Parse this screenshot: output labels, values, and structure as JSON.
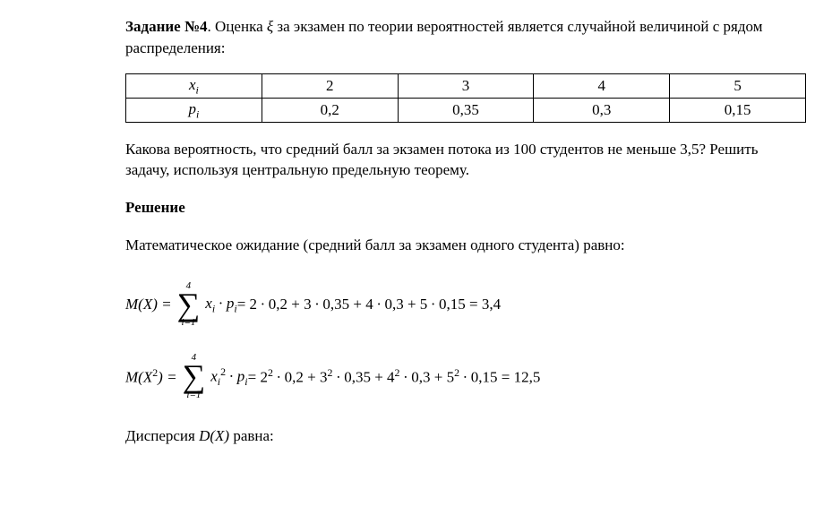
{
  "task": {
    "label": "Задание №4",
    "intro_part1": ". Оценка ",
    "var_symbol": "ξ",
    "intro_part2": " за экзамен по теории вероятностей является случайной величиной с рядом распределения:"
  },
  "table": {
    "row_labels": {
      "x": "x",
      "x_sub": "i",
      "p": "p",
      "p_sub": "i"
    },
    "x_values": [
      "2",
      "3",
      "4",
      "5"
    ],
    "p_values": [
      "0,2",
      "0,35",
      "0,3",
      "0,15"
    ]
  },
  "question": "Какова вероятность, что средний балл за экзамен потока из 100 студентов не меньше 3,5? Решить задачу, используя центральную предельную теорему.",
  "solution_label": "Решение",
  "line1": "Математическое ожидание (средний балл за экзамен одного студента) равно:",
  "mx": {
    "lhs": "M(X) = ",
    "sum_top": "4",
    "sum_bot": "i=1",
    "summand": "x",
    "summand_sub": "i",
    "dot": " ∙ ",
    "p": "p",
    "p_sub": "i",
    "eq": " = 2 ∙ 0,2 + 3 ∙ 0,35 + 4 ∙ 0,3 + 5 ∙ 0,15 = 3,4"
  },
  "mx2": {
    "lhs": "M(X",
    "lhs_sup": "2",
    "lhs2": ") = ",
    "sum_top": "4",
    "sum_bot": "i=1",
    "x": "x",
    "x_sub": "i",
    "x_sup": "2",
    "dot": " ∙ ",
    "p": "p",
    "p_sub": "i",
    "eq_part1": " = 2",
    "sup2": "2",
    "eq_part2": " ∙ 0,2 + 3",
    "eq_part3": " ∙ 0,35 + 4",
    "eq_part4": " ∙ 0,3 + 5",
    "eq_part5": " ∙ 0,15 = 12,5"
  },
  "line2_part1": "Дисперсия ",
  "line2_dvar": "D(X)",
  "line2_part2": " равна:"
}
